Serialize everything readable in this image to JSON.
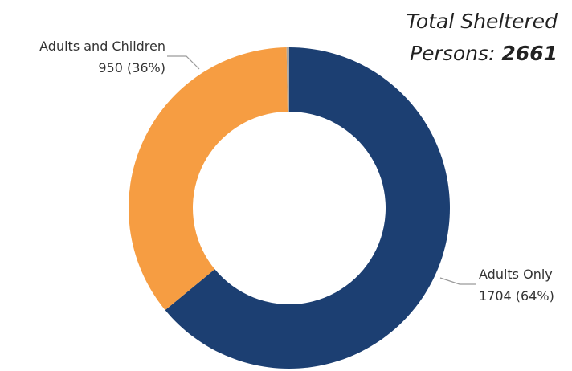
{
  "chart_data": {
    "type": "pie",
    "variant": "donut",
    "title_prefix": "Total Sheltered",
    "title_label": "Persons:",
    "total": "2661",
    "slices": [
      {
        "name": "Adults Only",
        "value": 1704,
        "label": "1704 (64%)",
        "color": "#1c3f72"
      },
      {
        "name": "Adults and Children",
        "value": 950,
        "label": "950 (36%)",
        "color": "#f69d42"
      },
      {
        "name": "",
        "value": 7,
        "label": "",
        "color": "#a6a6a6"
      }
    ],
    "legend": "none",
    "start_angle": "12 o'clock",
    "direction": "clockwise"
  }
}
